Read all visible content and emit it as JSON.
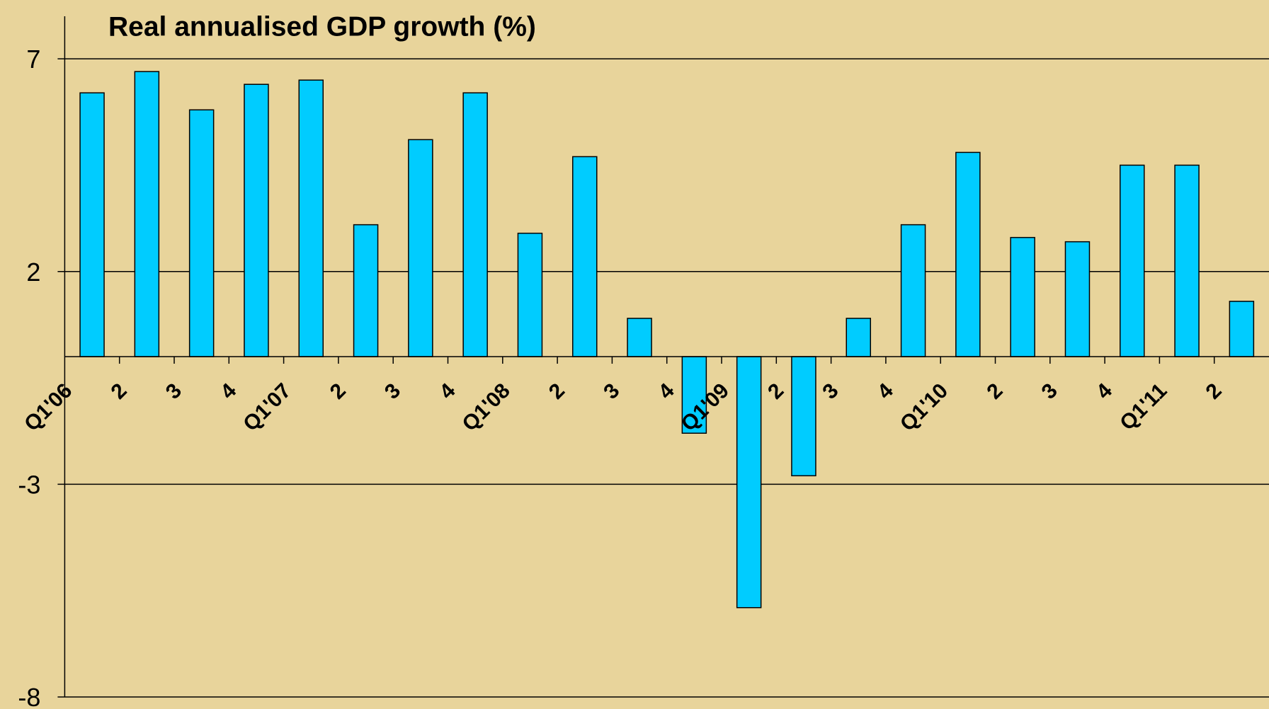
{
  "chart_data": {
    "type": "bar",
    "title": "Real annualised GDP growth (%)",
    "categories": [
      "Q1'06",
      "2",
      "3",
      "4",
      "Q1'07",
      "2",
      "3",
      "4",
      "Q1'08",
      "2",
      "3",
      "4",
      "Q1'09",
      "2",
      "3",
      "4",
      "Q1'10",
      "2",
      "3",
      "4",
      "Q1'11",
      "2"
    ],
    "values": [
      6.2,
      6.7,
      5.8,
      6.4,
      6.5,
      3.1,
      5.1,
      6.2,
      2.9,
      4.7,
      0.9,
      -1.8,
      -5.9,
      -2.8,
      0.9,
      3.1,
      4.8,
      2.8,
      2.7,
      4.5,
      4.5,
      1.3
    ],
    "color": "#00ccff",
    "ylim": [
      -8,
      8
    ],
    "yticks": [
      -8,
      -3,
      2,
      7
    ],
    "grid": true
  }
}
